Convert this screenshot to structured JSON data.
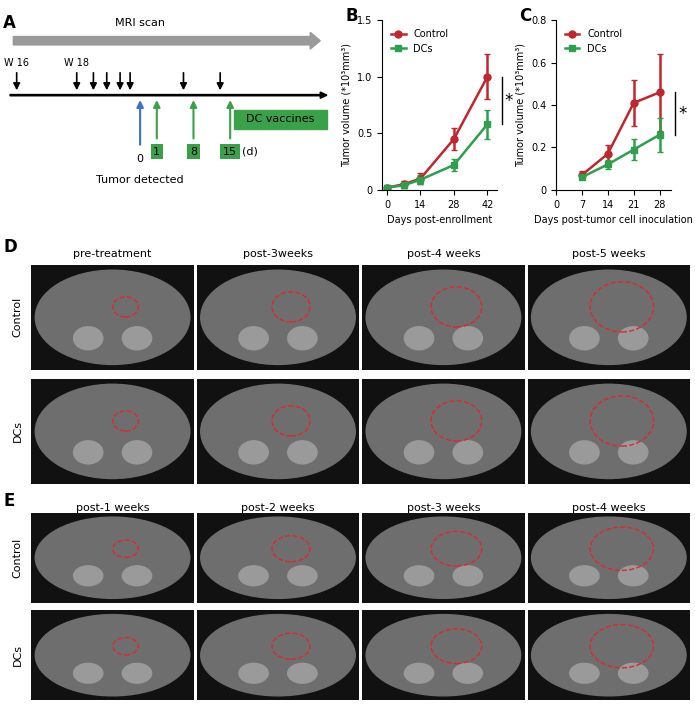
{
  "diagram": {
    "label": "A",
    "scan_label": "MRI scan",
    "weeks": [
      "W 16",
      "W 18"
    ],
    "event_day": 0,
    "event": "Tumor detected",
    "vaccine_days": [
      1,
      8,
      15
    ],
    "days_unit": "(d)",
    "treatment": "DC vaccines"
  },
  "chart_data": [
    {
      "type": "line",
      "label": "B",
      "xlabel": "Days post-enrollment",
      "ylabel": "Tumor volume (*10³mm³)",
      "x": [
        0,
        7,
        14,
        28,
        42
      ],
      "xlim": [
        -2,
        46
      ],
      "xticks": [
        0,
        14,
        28,
        42
      ],
      "ylim": [
        0,
        1.5
      ],
      "yticks": [
        0,
        0.5,
        1.0,
        1.5
      ],
      "legend": "upper left",
      "significance": "*",
      "series": [
        {
          "name": "Control",
          "color": "#c0262d",
          "marker": "o",
          "values": [
            0.02,
            0.05,
            0.1,
            0.45,
            1.0
          ],
          "errors": [
            0.02,
            0.03,
            0.05,
            0.1,
            0.2
          ]
        },
        {
          "name": "DCs",
          "color": "#2e9e4f",
          "marker": "s",
          "values": [
            0.02,
            0.04,
            0.09,
            0.22,
            0.58
          ],
          "errors": [
            0.01,
            0.02,
            0.04,
            0.05,
            0.13
          ]
        }
      ]
    },
    {
      "type": "line",
      "label": "C",
      "xlabel": "Days post-tumor cell inoculation",
      "ylabel": "Tumor volume (*10³mm³)",
      "x": [
        7,
        14,
        21,
        28
      ],
      "xlim": [
        0,
        31
      ],
      "xticks": [
        0,
        7,
        14,
        21,
        28
      ],
      "ylim": [
        0,
        0.8
      ],
      "yticks": [
        0,
        0.2,
        0.4,
        0.6,
        0.8
      ],
      "legend": "upper left",
      "significance": "*",
      "series": [
        {
          "name": "Control",
          "color": "#c0262d",
          "marker": "o",
          "values": [
            0.07,
            0.17,
            0.41,
            0.46
          ],
          "errors": [
            0.02,
            0.04,
            0.11,
            0.18
          ]
        },
        {
          "name": "DCs",
          "color": "#2e9e4f",
          "marker": "s",
          "values": [
            0.06,
            0.12,
            0.19,
            0.26
          ],
          "errors": [
            0.01,
            0.02,
            0.05,
            0.08
          ]
        }
      ]
    }
  ],
  "image_panels": [
    {
      "label": "D",
      "columns": [
        "pre-treatment",
        "post-3weeks",
        "post-4 weeks",
        "post-5 weeks"
      ],
      "rows": [
        "Control",
        "DCs"
      ]
    },
    {
      "label": "E",
      "columns": [
        "post-1 weeks",
        "post-2 weeks",
        "post-3 weeks",
        "post-4 weeks"
      ],
      "rows": [
        "Control",
        "DCs"
      ]
    }
  ]
}
